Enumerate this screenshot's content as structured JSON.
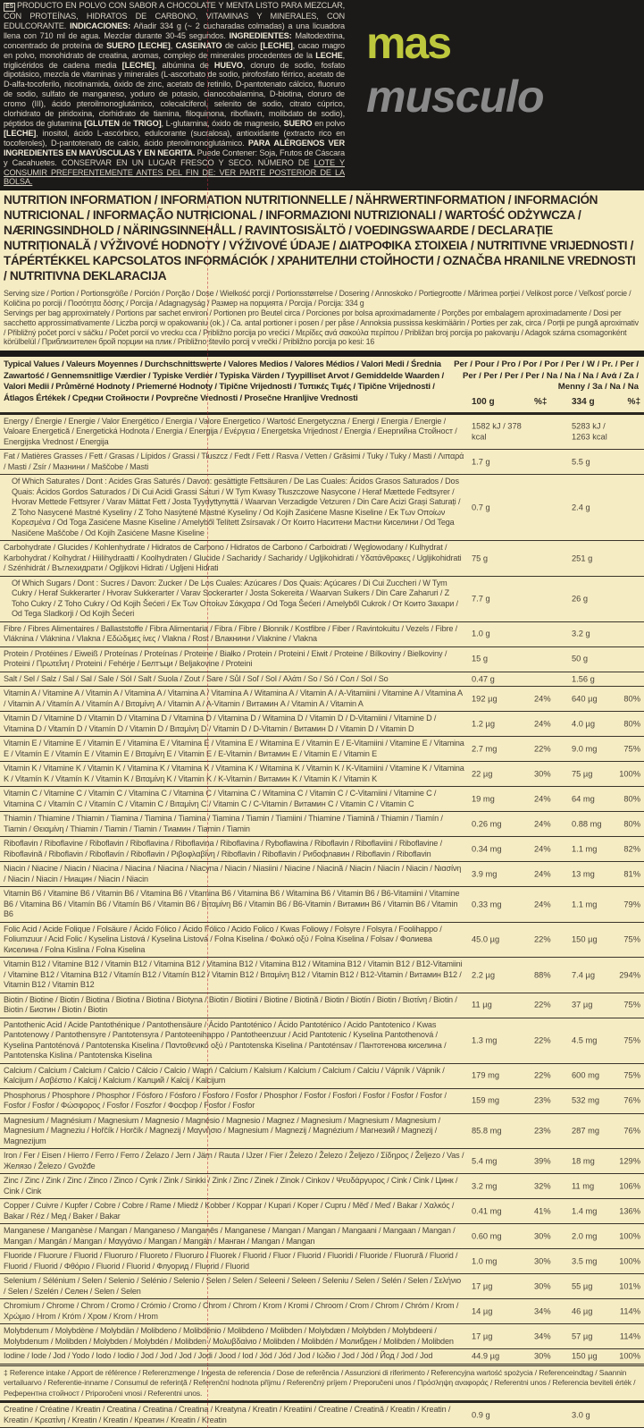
{
  "ingredients": {
    "badge": "ES",
    "segments": [
      {
        "t": "PRODUCTO EN POLVO CON SABOR A CHOCOLATE Y MENTA LISTO PARA MEZCLAR, CON PROTEÍNAS, HIDRATOS DE CARBONO, VITAMINAS Y MINERALES, CON EDULCORANTE. ",
        "b": false
      },
      {
        "t": "INDICACIONES:",
        "b": true
      },
      {
        "t": " Añadir 334 g (~ 2 cucharadas colmadas) a una licuadora llena con 710 ml de agua. Mezclar durante 30-45 segundos. ",
        "b": false
      },
      {
        "t": "INGREDIENTES:",
        "b": true
      },
      {
        "t": " Maltodextrina, concentrado de proteína de ",
        "b": false
      },
      {
        "t": "SUERO [LECHE]",
        "b": true
      },
      {
        "t": ", ",
        "b": false
      },
      {
        "t": "CASEINATO",
        "b": true
      },
      {
        "t": " de calcio ",
        "b": false
      },
      {
        "t": "[LECHE]",
        "b": true
      },
      {
        "t": ", cacao magro en polvo, monohidrato de creatina, aromas, complejo de minerales procedentes de la ",
        "b": false
      },
      {
        "t": "LECHE",
        "b": true
      },
      {
        "t": ", triglicéridos de cadena media ",
        "b": false
      },
      {
        "t": "[LECHE]",
        "b": true
      },
      {
        "t": ", albúmina de ",
        "b": false
      },
      {
        "t": "HUEVO",
        "b": true
      },
      {
        "t": ", cloruro de sodio, fosfato dipotásico, mezcla de vitaminas y minerales (L-ascorbato de sodio, pirofosfato férrico, acetato de D-alfa-tocoferilo, nicotinamida, óxido de zinc, acetato de retinilo, D-pantotenato cálcico, fluoruro de sodio, sulfato de manganeso, yoduro de potasio, cianocobalamina, D-biotina, cloruro de cromo (III), ácido pteroilmonoglutámico, colecalciferol, selenito de sodio, citrato cúprico, clorhidrato de piridoxina, clorhidrato de tiamina, filoquinona, riboflavin, molibdato de sodio), péptidos de glutamina ",
        "b": false
      },
      {
        "t": "[GLUTEN",
        "b": true
      },
      {
        "t": " de ",
        "b": false
      },
      {
        "t": "TRIGO]",
        "b": true
      },
      {
        "t": ", L-glutamina, óxido de magnesio, ",
        "b": false
      },
      {
        "t": "SUERO",
        "b": true
      },
      {
        "t": " en polvo ",
        "b": false
      },
      {
        "t": "[LECHE]",
        "b": true
      },
      {
        "t": ", inositol, ácido L-ascórbico, edulcorante (sucralosa), antioxidante (extracto rico en tocoferoles), D-pantotenato de calcio, ácido pteroilmonoglutámico. ",
        "b": false
      },
      {
        "t": "PARA ALÉRGENOS VER INGREDIENTES EN MAYÚSCULAS Y EN NEGRITA.",
        "b": true
      },
      {
        "t": " Puede Contener: Soja, Frutos de Cáscara y Cacahuetes. CONSERVAR EN UN LUGAR FRESCO Y SECO. NÚMERO DE ",
        "b": false
      },
      {
        "t": "LOTE Y CONSUMIR PREFERENTEMENTE ANTES DEL FIN DE: VER PARTE POSTERIOR DE LA BOLSA.",
        "b": false,
        "u": true
      }
    ]
  },
  "nutrition": {
    "title": "NUTRITION INFORMATION / INFORMATION NUTRITIONNELLE / NÄHRWERTINFORMATION / INFORMACIÓN NUTRICIONAL / INFORMAÇÃO NUTRICIONAL / INFORMAZIONI NUTRIZIONALI / WARTOŚĆ ODŻYWCZA / NÆRINGSINDHOLD / NÄRINGSINNEHÅLL / RAVINTOSISÄLTÖ / VOEDINGSWAARDE / DECLARAȚIE NUTRIȚIONALĂ / VÝŽIVOVÉ HODNOTY / VÝŽIVOVÉ ÚDAJE / ΔΙΑΤΡΟΦΙΚΑ ΣΤΟΙΧΕΙΑ / NUTRITIVNE VRIJEDNOSTI / TÁPÉRTÉKKEL KAPCSOLATOS INFORMÁCIÓK / ХРАНИТЕЛНИ СТОЙНОСТИ / OZNAČBA HRANILNE VREDNOSTI / NUTRITIVNA DEKLARACIJA",
    "serving_size": "Serving size / Portion / Portionsgröße / Porción / Porção / Dose / Wielkość porcji / Portionsstørrelse / Dosering / Annoskoko / Portiegrootte / Mărimea porției / Velikost porce / Veľkosť porcie / Količina po porciji / Ποσότητα δόσης / Porcija / Adagnagyság / Размер на порцията / Porcija / Porcija: 334 g",
    "servings_per_bag": "Servings per bag approximately / Portions par sachet environ / Portionen pro Beutel circa / Porciones por bolsa aproximadamente / Porções por embalagem aproximadamente / Dosi per sacchetto approssimativamente / Liczba porcji w opakowaniu (ok.) / Ca. antal portioner i posen / per påse / Annoksia pussissa keskimäärin / Porties per zak, circa / Porții pe pungă aproximativ / Přibližný počet porcí v sáčku / Počet porcií vo vrecku cca / Približno porcija po vrećici / Μερίδες ανά σακούλα περίπου / Približan broj porcija po pakovanju / Adagok száma csomagonként körülbelül / Приблизителен брой порции на плик / Približno število porcij v vrečki / Približno porcija po kesi: 16",
    "header": {
      "typical_values": "Typical Values / Valeurs Moyennes / Durchschnittswerte / Valores Medios / Valores Médios / Valori Medi / Średnia Zawartość / Gennemsnitlige Værdier / Typiske Verdier / Typiska Värden / Tyypilliset Arvot / Gemiddelde Waarden / Valori Medii / Průměrné Hodnoty / Priemerné Hodnoty / Tipične Vrijednosti / Τυπικές Τιμές / Tipične Vrijednosti / Átlagos Értékek / Средни Стойности / Povprečne Vrednosti / Prosečne Hranljive Vrednosti",
      "per": "Per / Pour / Pro / Por / Por / Per / W / Pr. / Per / Per / Per / Per / Per / Na / Na / Na / Ανά / Za / Menny / За / Na / Na",
      "col_100g": "100 g",
      "col_pct1": "%‡",
      "col_334g": "334 g",
      "col_pct2": "%‡"
    },
    "rows": [
      {
        "name": "Energy / Énergie / Energie / Valor Energético / Energia / Valore Energetico / Wartość Energetyczna / Energi / Energia / Energie / Valoare Energetică / Energetická Hodnota / Energia / Energija / Ενέργεια / Energetska Vrijednost / Energia / Енергийна Стойност / Energijska Vrednost / Energija",
        "v100": "1582 kJ / 378 kcal",
        "p100": "",
        "v334": "5283 kJ / 1263 kcal",
        "p334": ""
      },
      {
        "name": "Fat / Matières Grasses / Fett / Grasas / Lípidos / Grassi / Tłuszcz / Fedt / Fett / Rasva / Vetten / Grăsimi / Tuky / Tuky / Masti / Λιπαρά / Masti / Zsír / Мазнини / Maščobe / Masti",
        "v100": "1.7 g",
        "p100": "",
        "v334": "5.5 g",
        "p334": ""
      },
      {
        "name": "Of Which Saturates / Dont : Acides Gras Saturés / Davon: gesättigte Fettsäuren / De Las Cuales: Ácidos Grasos Saturados / Dos Quais: Ácidos Gordos Saturados / Di Cui Acidi Grassi Saturi / W Tym Kwasy Tłuszczowe Nasycone / Heraf Mættede Fedtsyrer / Hvorav Mettede Fettsyrer / Varav Mättat Fett / Josta Tyydyttynyttä / Waarvan Verzadigde Vetzuren / Din Care Acizi Grași Saturați / Z Toho Nasycené Mastné Kyseliny / Z Toho Nasýtené Mastné Kyseliny / Od Kojih Zasićene Masne Kiseline / Εκ Των Οποίων Κορεσμένα / Od Toga Zasićene Masne Kiseline / Amelyből Telített Zsírsavak / От Които Наситени Мастни Киселини / Od Tega Nasičene Maščobe / Od Kojih Zasićene Masne Kiseline",
        "v100": "0.7 g",
        "p100": "",
        "v334": "2.4 g",
        "p334": "",
        "indent": true
      },
      {
        "name": "Carbohydrate / Glucides / Kohlenhydrate / Hidratos de Carbono / Hidratos de Carbono / Carboidrati / Węglowodany / Kulhydrat / Karbohydrat / Kolhydrat / Hiilihydraatti / Koolhydraten / Glucide / Sacharidy / Sacharidy / Ugljikohidrati / Υδατάνθρακες / Ugljikohidrati / Szénhidrát / Въглехидрати / Ogljikovi Hidrati / Ugljeni Hidrati",
        "v100": "75 g",
        "p100": "",
        "v334": "251 g",
        "p334": ""
      },
      {
        "name": "Of Which Sugars / Dont : Sucres / Davon: Zucker / De Los Cuales: Azúcares / Dos Quais: Açúcares / Di Cui Zuccheri / W Tym Cukry / Heraf Sukkerarter / Hvorav Sukkerarter / Varav Sockerarter / Josta Sokereita / Waarvan Suikers / Din Care Zaharuri / Z Toho Cukry / Z Toho Cukry / Od Kojih Šećeri / Εκ Των Οποίων Σάκχαρα / Od Toga Šećeri / Amelyből Cukrok / От Които Захари / Od Tega Sladkorji / Od Kojih Šećeri",
        "v100": "7.7 g",
        "p100": "",
        "v334": "26 g",
        "p334": "",
        "indent": true
      },
      {
        "name": "Fibre / Fibres Alimentaires / Ballaststoffe / Fibra Alimentaria / Fibra / Fibre / Błonnik / Kostfibre / Fiber / Ravintokuitu / Vezels / Fibre / Vláknina / Vláknina / Vlakna / Εδώδιμες ίνες / Vlakna / Rost / Влакнини / Vlaknine / Vlakna",
        "v100": "1.0 g",
        "p100": "",
        "v334": "3.2 g",
        "p334": ""
      },
      {
        "name": "Protein / Protéines / Eiweiß / Proteínas / Proteínas / Proteine / Białko / Protein / Proteini / Eiwit / Proteine / Bílkoviny / Bielkoviny / Proteini / Πρωτεΐνη / Proteini / Fehérje / Белтъци / Beljakovine / Proteini",
        "v100": "15 g",
        "p100": "",
        "v334": "50 g",
        "p334": ""
      },
      {
        "name": "Salt / Sel / Salz / Sal / Sal / Sale / Sól / Salt / Suola / Zout / Sare / Sůl / Soľ / Sol / Αλάτι / So / Só / Сол / Sol / So",
        "v100": "0.47 g",
        "p100": "",
        "v334": "1.56 g",
        "p334": ""
      },
      {
        "name": "Vitamin A / Vitamine A / Vitamin A / Vitamina A / Vitamina A / Vitamina A / Witamina A / Vitamin A / A-Vitamiini / Vitamine A / Vitamina A / Vitamin A / Vitamín A / Vitamín A / Βιταμίνη A / Vitamin A / A-Vitamin / Витамин A / Vitamin A / Vitamin A",
        "v100": "192 µg",
        "p100": "24%",
        "v334": "640 µg",
        "p334": "80%"
      },
      {
        "name": "Vitamin D / Vitamine D / Vitamin D / Vitamina D / Vitamina D / Vitamina D / Witamina D / Vitamin D / D-Vitamiini / Vitamine D / Vitamina D / Vitamín D / Vitamín D / Vitamin D / Βιταμίνη D / Vitamin D / D-Vitamin / Витамин D / Vitamin D / Vitamin D",
        "v100": "1.2 µg",
        "p100": "24%",
        "v334": "4.0 µg",
        "p334": "80%"
      },
      {
        "name": "Vitamin E / Vitamine E / Vitamin E / Vitamina E / Vitamina E / Vitamina E / Witamina E / Vitamin E / E-Vitamiini / Vitamine E / Vitamina E / Vitamín E / Vitamín E / Vitamin E / Βιταμίνη E / Vitamin E / E-Vitamin / Витамин E / Vitamin E / Vitamin E",
        "v100": "2.7 mg",
        "p100": "22%",
        "v334": "9.0 mg",
        "p334": "75%"
      },
      {
        "name": "Vitamin K / Vitamine K / Vitamin K / Vitamina K / Vitamina K / Vitamina K / Witamina K / Vitamin K / K-Vitamiini / Vitamine K / Vitamina K / Vitamín K / Vitamín K / Vitamin K / Βιταμίνη K / Vitamin K / K-Vitamin / Витамин K / Vitamin K / Vitamin K",
        "v100": "22 µg",
        "p100": "30%",
        "v334": "75 µg",
        "p334": "100%"
      },
      {
        "name": "Vitamin C / Vitamine C / Vitamin C / Vitamina C / Vitamina C / Vitamina C / Witamina C / Vitamin C / C-Vitamiini / Vitamine C / Vitamina C / Vitamín C / Vitamín C / Vitamin C / Βιταμίνη C / Vitamin C / C-Vitamin / Витамин C / Vitamin C / Vitamin C",
        "v100": "19 mg",
        "p100": "24%",
        "v334": "64 mg",
        "p334": "80%"
      },
      {
        "name": "Thiamin / Thiamine / Thiamin / Tiamina / Tiamina / Tiamina / Tiamina / Tiamin / Tiamiini / Thiamine / Tiamină / Thiamin / Tiamín / Tiamin / Θειαμίνη / Thiamin / Tiamin / Tiamin / Тиамин / Tiamin / Tiamin",
        "v100": "0.26 mg",
        "p100": "24%",
        "v334": "0.88 mg",
        "p334": "80%"
      },
      {
        "name": "Riboflavin / Riboflavine / Riboflavin / Riboflavina / Riboflavina / Riboflavina / Ryboflawina / Riboflavin / Riboflaviini / Riboflavine / Riboflavină / Riboflavin / Riboflavín / Riboflavin / Ριβοφλαβίνη / Riboflavin / Riboflavin / Рибофлавин / Riboflavin / Riboflavin",
        "v100": "0.34 mg",
        "p100": "24%",
        "v334": "1.1 mg",
        "p334": "82%"
      },
      {
        "name": "Niacin / Niacine / Niacin / Niacina / Niacina / Niacina / Niacyna / Niacin / Niasiini / Niacine / Niacină / Niacin / Niacín / Niacin / Νιασίνη / Niacin / Niacin / Ниацин / Niacin / Niacin",
        "v100": "3.9 mg",
        "p100": "24%",
        "v334": "13 mg",
        "p334": "81%"
      },
      {
        "name": "Vitamin B6 / Vitamine B6 / Vitamin B6 / Vitamina B6 / Vitamina B6 / Vitamina B6 / Witamina B6 / Vitamin B6 / B6-Vitamiini / Vitamine B6 / Vitamina B6 / Vitamín B6 / Vitamín B6 / Vitamin B6 / Βιταμίνη B6 / Vitamin B6 / B6-Vitamin / Витамин B6 / Vitamin B6 / Vitamin B6",
        "v100": "0.33 mg",
        "p100": "24%",
        "v334": "1.1 mg",
        "p334": "79%"
      },
      {
        "name": "Folic Acid / Acide Folique / Folsäure / Ácido Fólico / Ácido Fólico / Acido Folico / Kwas Foliowy / Folsyre / Folsyra / Foolihappo / Foliumzuur / Acid Folic / Kyselina Listová / Kyselina Listová / Folna Kiselina / Φολικό οξύ / Folna Kiselina / Folsav / Фолиева Киселина / Folna Kislina / Folna Kiselina",
        "v100": "45.0 µg",
        "p100": "22%",
        "v334": "150 µg",
        "p334": "75%"
      },
      {
        "name": "Vitamin B12 / Vitamine B12 / Vitamin B12 / Vitamina B12 / Vitamina B12 / Vitamina B12 / Witamina B12 / Vitamin B12 / B12-Vitamiini / Vitamine B12 / Vitamina B12 / Vitamín B12 / Vitamín B12 / Vitamin B12 / Βιταμίνη B12 / Vitamin B12 / B12-Vitamin / Витамин B12 / Vitamin B12 / Vitamin B12",
        "v100": "2.2 µg",
        "p100": "88%",
        "v334": "7.4 µg",
        "p334": "294%"
      },
      {
        "name": "Biotin / Biotine / Biotin / Biotina / Biotina / Biotina / Biotyna / Biotin / Biotiini / Biotine / Biotină / Biotin / Biotín / Biotin / Βιοτίνη / Biotin / Biotin / Биотин / Biotin / Biotin",
        "v100": "11 µg",
        "p100": "22%",
        "v334": "37 µg",
        "p334": "75%"
      },
      {
        "name": "Pantothenic Acid / Acide Pantothénique / Pantothensäure / Ácido Pantoténico / Ácido Pantoténico / Acido Pantotenico / Kwas Pantotenowy / Pantothensyre / Pantotensyra / Pantoteenihappo / Pantotheenzuur / Acid Pantotenic / Kyselina Pantothenová / Kyselina Pantoténová / Pantotenska Kiselina / Παντοθενικό οξύ / Pantotenska Kiselina / Pantoténsav / Пантотенова киселина / Pantotenska Kislina / Pantotenska Kiselina",
        "v100": "1.3 mg",
        "p100": "22%",
        "v334": "4.5 mg",
        "p334": "75%"
      },
      {
        "name": "Calcium / Calcium / Calcium / Calcio / Cálcio / Calcio / Wapń / Calcium / Kalsium / Kalcium / Calcium / Calciu / Vápník / Vápnik / Kalcijum / Ασβέστιο / Kalcij / Kalcium / Калций / Kalcij / Kalcijum",
        "v100": "179 mg",
        "p100": "22%",
        "v334": "600 mg",
        "p334": "75%"
      },
      {
        "name": "Phosphorus / Phosphore / Phosphor / Fósforo / Fósforo / Fosforo / Fosfor / Phosphor / Fosfor / Fosfori / Fosfor / Fosfor / Fosfor / Fosfor / Fosfor / Φώσφορος / Fosfor / Foszfor / Фосфор / Fosfor / Fosfor",
        "v100": "159 mg",
        "p100": "23%",
        "v334": "532 mg",
        "p334": "76%"
      },
      {
        "name": "Magnesium / Magnésium / Magnesium / Magnesio / Magnésio / Magnesio / Magnez / Magnesium / Magnesium / Magnesium / Magnesium / Magneziu / Hořčík / Horčík / Magnezij / Μαγνήσιο / Magnesium / Magnezij / Magnézium / Магнезий / Magnezij / Magnezijum",
        "v100": "85.8 mg",
        "p100": "23%",
        "v334": "287 mg",
        "p334": "76%"
      },
      {
        "name": "Iron / Fer / Eisen / Hierro / Ferro / Ferro / Żelazo / Jern / Järn / Rauta / IJzer / Fier / Železo / Železo / Željezo / Σίδηρος / Željezo / Vas / Желязо / Železo / Gvožđe",
        "v100": "5.4 mg",
        "p100": "39%",
        "v334": "18 mg",
        "p334": "129%"
      },
      {
        "name": "Zinc / Zinc / Zink / Zinc / Zinco / Zinco / Cynk / Zink / Sinkki / Zink / Zinc / Zinek / Zinok / Cinkov / Ψευδάργυρος / Cink / Cink / Цинк / Cink / Cink",
        "v100": "3.2 mg",
        "p100": "32%",
        "v334": "11 mg",
        "p334": "106%"
      },
      {
        "name": "Copper / Cuivre / Kupfer / Cobre / Cobre / Rame / Miedź / Kobber / Koppar / Kupari / Koper / Cupru / Měď / Meď / Bakar / Χαλκός / Bakar / Réz / Мед / Baker / Bakar",
        "v100": "0.41 mg",
        "p100": "41%",
        "v334": "1.4 mg",
        "p334": "136%"
      },
      {
        "name": "Manganese / Manganèse / Mangan / Manganeso / Manganês / Manganese / Mangan / Mangan / Mangaani / Mangaan / Mangan / Mangan / Mangán / Mangan / Μαγγάνιο / Mangan / Mangán / Манган / Mangan / Mangan",
        "v100": "0.60 mg",
        "p100": "30%",
        "v334": "2.0 mg",
        "p334": "100%"
      },
      {
        "name": "Fluoride / Fluorure / Fluorid / Fluoruro / Fluoreto / Fluoruro / Fluorek / Fluorid / Fluor / Fluorid / Fluoridi / Fluoride / Fluorură / Fluorid / Fluorid / Fluorid / Φθόριο / Fluorid / Fluorid / Флуорид / Fluorid / Fluorid",
        "v100": "1.0 mg",
        "p100": "30%",
        "v334": "3.5 mg",
        "p334": "100%"
      },
      {
        "name": "Selenium / Sélénium / Selen / Selenio / Selénio / Selenio / Selen / Selen / Seleeni / Seleen / Seleniu / Selen / Selén / Selen / Σελήνιο / Selen / Szelén / Селен / Selen / Selen",
        "v100": "17 µg",
        "p100": "30%",
        "v334": "55 µg",
        "p334": "101%"
      },
      {
        "name": "Chromium / Chrome / Chrom / Cromo / Crómio / Cromo / Chrom / Chrom / Krom / Kromi / Chroom / Crom / Chrom / Chróm / Krom / Χρώμιο / Hrom / Króm / Хром / Krom / Hrom",
        "v100": "14 µg",
        "p100": "34%",
        "v334": "46 µg",
        "p334": "114%"
      },
      {
        "name": "Molybdenum / Molybdène / Molybdän / Molibdeno / Molibdénio / Molibdeno / Molibden / Molybdæn / Molybden / Molybdeeni / Molybdenum / Molibden / Molybden / Molybdén / Molibden / Μολυβδαίνιο / Molibden / Molibdén / Молибден / Molibden / Molibden",
        "v100": "17 µg",
        "p100": "34%",
        "v334": "57 µg",
        "p334": "114%"
      },
      {
        "name": "Iodine / Iode / Jod / Yodo / Iodo / Iodio / Jod / Jod / Jod / Jodi / Jood / Iod / Jód / Jód / Jod / Ιώδιο / Jod / Jód / Йод / Jod / Jod",
        "v100": "44.9 µg",
        "p100": "30%",
        "v334": "150 µg",
        "p334": "100%",
        "style": "thick"
      },
      {
        "name": "‡ Reference intake / Apport de référence / Referenzmenge / Ingesta de referencia / Dose de referência / Assunzioni di riferimento / Referencyjna wartość spożycia / Referenceindtag / Saannin vertailuarvo / Referentie-inname / Consumul de referință / Referenční hodnota příjmu / Referenčný príjem / Preporučeni unos / Πρόσληψη αναφοράς / Referentni unos / Referencia beviteli érték / Референтна стойност / Priporočeni vnosi / Referentni unos.",
        "style": "foot"
      },
      {
        "name": "Creatine / Créatine / Kreatin / Creatina / Creatina / Creatina / Kreatyna / Kreatin / Kreatiini / Creatine / Creatină / Kreatin / Kreatin / Kreatin / Κρεατίνη / Kreatin / Kreatin / Креатин / Kreatin / Kreatin",
        "v100": "0.9 g",
        "p100": "",
        "v334": "3.0 g",
        "p334": ""
      }
    ]
  },
  "watermark": {
    "word1": "mas",
    "word2": "musculo"
  },
  "colors": {
    "label_bg": "#f6ecc3",
    "top_bg": "#1c1a19",
    "cut_line": "#be283c"
  }
}
